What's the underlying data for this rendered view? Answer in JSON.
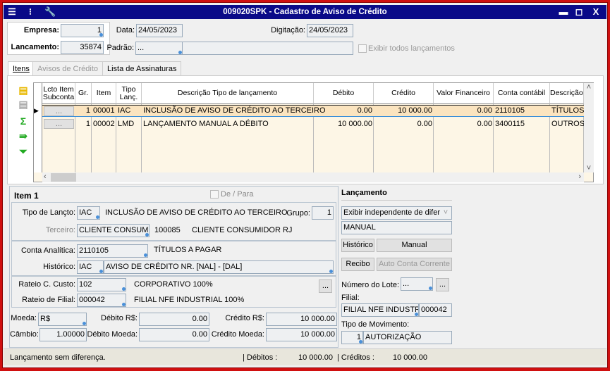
{
  "window": {
    "title": "009020SPK - Cadastro de Aviso de Crédito",
    "colors": {
      "titlebar": "#0a0a88",
      "frame": "#d01010",
      "grid_bg": "#fdf6e6",
      "selected_row": "#fbe4bf"
    }
  },
  "header": {
    "empresa_label": "Empresa:",
    "empresa": "1",
    "lancamento_label": "Lancamento:",
    "lancamento": "35874",
    "data_label": "Data:",
    "data": "24/05/2023",
    "digitacao_label": "Digitação:",
    "digitacao": "24/05/2023",
    "padrao_label": "Padrão:",
    "padrao": "...",
    "exibir_todos": "Exibir todos lançamentos"
  },
  "tabs": [
    {
      "label": "Itens",
      "active": true
    },
    {
      "label": "Avisos de Crédito",
      "disabled": true
    },
    {
      "label": "Lista de Assinaturas"
    }
  ],
  "grid": {
    "columns": [
      "Lcto Item Subconta",
      "Gr.",
      "Item",
      "Tipo Lanç.",
      "Descrição Tipo de lançamento",
      "Débito",
      "Crédito",
      "Valor Financeiro",
      "Conta contábil",
      "Descrição"
    ],
    "rows": [
      {
        "btn": "...",
        "gr": "1",
        "item": "00001",
        "tipo": "IAC",
        "desc": "INCLUSÃO DE AVISO DE CRÉDITO AO TERCEIRO",
        "debito": "0.00",
        "credito": "10 000.00",
        "vf": "0.00",
        "conta": "2110105",
        "descricao": "TÍTULOS"
      },
      {
        "btn": "...",
        "gr": "1",
        "item": "00002",
        "tipo": "LMD",
        "desc": "LANÇAMENTO MANUAL A DÉBITO",
        "debito": "10 000.00",
        "credito": "0.00",
        "vf": "0.00",
        "conta": "3400115",
        "descricao": "OUTROS"
      }
    ]
  },
  "item": {
    "title": "Item 1",
    "de_para": "De / Para",
    "tipo_label": "Tipo de Lançto:",
    "tipo": "IAC",
    "tipo_desc": "INCLUSÃO DE AVISO DE CRÉDITO AO TERCEIRO",
    "grupo_label": "Grupo:",
    "grupo": "1",
    "terceiro_label": "Terceiro:",
    "terceiro": "CLIENTE CONSUMIDOR",
    "terceiro_cod": "100085",
    "terceiro_nome": "CLIENTE CONSUMIDOR RJ",
    "conta_label": "Conta Analítica:",
    "conta": "2110105",
    "conta_desc": "TÍTULOS A PAGAR",
    "historico_label": "Histórico:",
    "historico_cod": "IAC",
    "historico": "AVISO DE CRÉDITO NR. [NAL] - [DAL]",
    "rateio_cc_label": "Rateio C. Custo:",
    "rateio_cc": "102",
    "rateio_cc_desc": "CORPORATIVO 100%",
    "rateio_btn": "...",
    "rateio_filial_label": "Rateio de Filial:",
    "rateio_filial": "000042",
    "rateio_filial_desc": "FILIAL NFE INDUSTRIAL 100%",
    "moeda_label": "Moeda:",
    "moeda": "R$",
    "debito_rs_label": "Débito R$:",
    "debito_rs": "0.00",
    "credito_rs_label": "Crédito R$:",
    "credito_rs": "10 000.00",
    "cambio_label": "Câmbio:",
    "cambio": "1.00000",
    "debito_moeda_label": "Débito Moeda:",
    "debito_moeda": "0.00",
    "credito_moeda_label": "Crédito Moeda:",
    "credito_moeda": "10 000.00"
  },
  "lancamento": {
    "title": "Lançamento",
    "exibir": "Exibir independente de diferença",
    "modo": "MANUAL",
    "historico_btn": "Histórico",
    "manual_btn": "Manual",
    "recibo_btn": "Recibo",
    "auto_btn": "Auto Conta Corrente",
    "lote_label": "Número do Lote:",
    "lote": "...",
    "lote_btn": "...",
    "filial_label": "Filial:",
    "filial_nome": "FILIAL NFE INDUSTRIAL",
    "filial_cod": "000042",
    "tipo_mov_label": "Tipo de Movimento:",
    "tipo_mov_cod": "1",
    "tipo_mov": "AUTORIZAÇÃO"
  },
  "status": {
    "message": "Lançamento sem diferença.",
    "debitos_label": "| Débitos :",
    "debitos": "10 000.00",
    "creditos_label": "| Créditos :",
    "creditos": "10 000.00"
  }
}
